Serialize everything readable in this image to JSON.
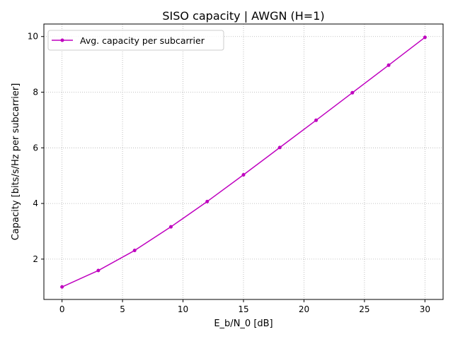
{
  "chart_data": {
    "type": "line",
    "title": "SISO capacity | AWGN (H=1)",
    "xlabel": "E_b/N_0 [dB]",
    "ylabel": "Capacity [bits/s/Hz per subcarrier]",
    "xlim": [
      -1.5,
      31.5
    ],
    "ylim": [
      0.55,
      10.45
    ],
    "xticks": [
      0,
      5,
      10,
      15,
      20,
      25,
      30
    ],
    "yticks": [
      2,
      4,
      6,
      8,
      10
    ],
    "grid": true,
    "legend_position": "top-left",
    "series": [
      {
        "name": "Avg. capacity per subcarrier",
        "color": "#bf00bf",
        "marker": "dot",
        "x": [
          0,
          3,
          6,
          9,
          12,
          15,
          18,
          21,
          24,
          27,
          30
        ],
        "y": [
          1.0,
          1.59,
          2.31,
          3.16,
          4.07,
          5.03,
          6.01,
          6.99,
          7.98,
          8.97,
          9.97
        ]
      }
    ]
  }
}
